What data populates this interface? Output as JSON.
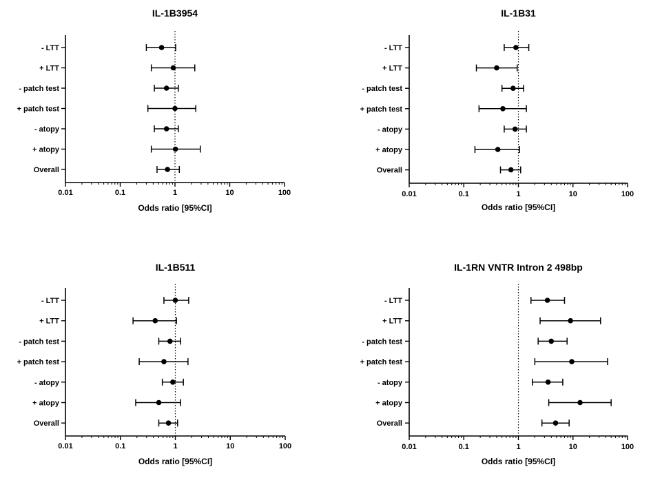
{
  "chart_data": [
    {
      "type": "forest",
      "title": "IL-1B3954",
      "xlabel": "Odds ratio [95%CI]",
      "xscale": "log",
      "xlim": [
        0.01,
        100
      ],
      "xticks": [
        "0.01",
        "0.1",
        "1",
        "10",
        "100"
      ],
      "reference_line": 1,
      "categories": [
        "- LTT",
        "+ LTT",
        "- patch test",
        "+ patch test",
        "- atopy",
        "+ atopy",
        "Overall"
      ],
      "points": [
        {
          "or": 0.57,
          "lo": 0.3,
          "hi": 1.03
        },
        {
          "or": 0.93,
          "lo": 0.37,
          "hi": 2.3
        },
        {
          "or": 0.7,
          "lo": 0.42,
          "hi": 1.15
        },
        {
          "or": 1.0,
          "lo": 0.32,
          "hi": 2.4
        },
        {
          "or": 0.7,
          "lo": 0.42,
          "hi": 1.15
        },
        {
          "or": 1.02,
          "lo": 0.37,
          "hi": 2.9
        },
        {
          "or": 0.73,
          "lo": 0.47,
          "hi": 1.2
        }
      ]
    },
    {
      "type": "forest",
      "title": "IL-1B31",
      "xlabel": "Odds ratio [95%CI]",
      "xscale": "log",
      "xlim": [
        0.01,
        100
      ],
      "xticks": [
        "0.01",
        "0.1",
        "1",
        "10",
        "100"
      ],
      "reference_line": 1,
      "categories": [
        "- LTT",
        "+ LTT",
        "- patch test",
        "+ patch test",
        "- atopy",
        "+ atopy",
        "Overall"
      ],
      "points": [
        {
          "or": 0.9,
          "lo": 0.55,
          "hi": 1.55
        },
        {
          "or": 0.4,
          "lo": 0.17,
          "hi": 0.95
        },
        {
          "or": 0.8,
          "lo": 0.5,
          "hi": 1.25
        },
        {
          "or": 0.52,
          "lo": 0.19,
          "hi": 1.4
        },
        {
          "or": 0.87,
          "lo": 0.55,
          "hi": 1.4
        },
        {
          "or": 0.42,
          "lo": 0.16,
          "hi": 1.05
        },
        {
          "or": 0.73,
          "lo": 0.47,
          "hi": 1.1
        }
      ]
    },
    {
      "type": "forest",
      "title": "IL-1B511",
      "xlabel": "Odds ratio [95%CI]",
      "xscale": "log",
      "xlim": [
        0.01,
        100
      ],
      "xticks": [
        "0.01",
        "0.1",
        "1",
        "10",
        "100"
      ],
      "reference_line": 1,
      "categories": [
        "- LTT",
        "+ LTT",
        "- patch test",
        "+ patch test",
        "- atopy",
        "+ atopy",
        "Overall"
      ],
      "points": [
        {
          "or": 1.0,
          "lo": 0.62,
          "hi": 1.75
        },
        {
          "or": 0.43,
          "lo": 0.17,
          "hi": 1.05
        },
        {
          "or": 0.8,
          "lo": 0.5,
          "hi": 1.25
        },
        {
          "or": 0.62,
          "lo": 0.22,
          "hi": 1.7
        },
        {
          "or": 0.9,
          "lo": 0.58,
          "hi": 1.4
        },
        {
          "or": 0.5,
          "lo": 0.19,
          "hi": 1.25
        },
        {
          "or": 0.75,
          "lo": 0.5,
          "hi": 1.1
        }
      ]
    },
    {
      "type": "forest",
      "title": "IL-1RN VNTR Intron 2 498bp",
      "xlabel": "Odds ratio [95%CI]",
      "xscale": "log",
      "xlim": [
        0.01,
        100
      ],
      "xticks": [
        "0.01",
        "0.1",
        "1",
        "10",
        "100"
      ],
      "reference_line": 1,
      "categories": [
        "- LTT",
        "+ LTT",
        "- patch test",
        "+ patch test",
        "- atopy",
        "+ atopy",
        "Overall"
      ],
      "points": [
        {
          "or": 3.4,
          "lo": 1.7,
          "hi": 7.0
        },
        {
          "or": 9.0,
          "lo": 2.5,
          "hi": 32.0
        },
        {
          "or": 4.0,
          "lo": 2.3,
          "hi": 7.8
        },
        {
          "or": 9.5,
          "lo": 2.0,
          "hi": 43.0
        },
        {
          "or": 3.5,
          "lo": 1.8,
          "hi": 6.5
        },
        {
          "or": 13.5,
          "lo": 3.6,
          "hi": 50.0
        },
        {
          "or": 4.8,
          "lo": 2.7,
          "hi": 8.5
        }
      ]
    }
  ]
}
